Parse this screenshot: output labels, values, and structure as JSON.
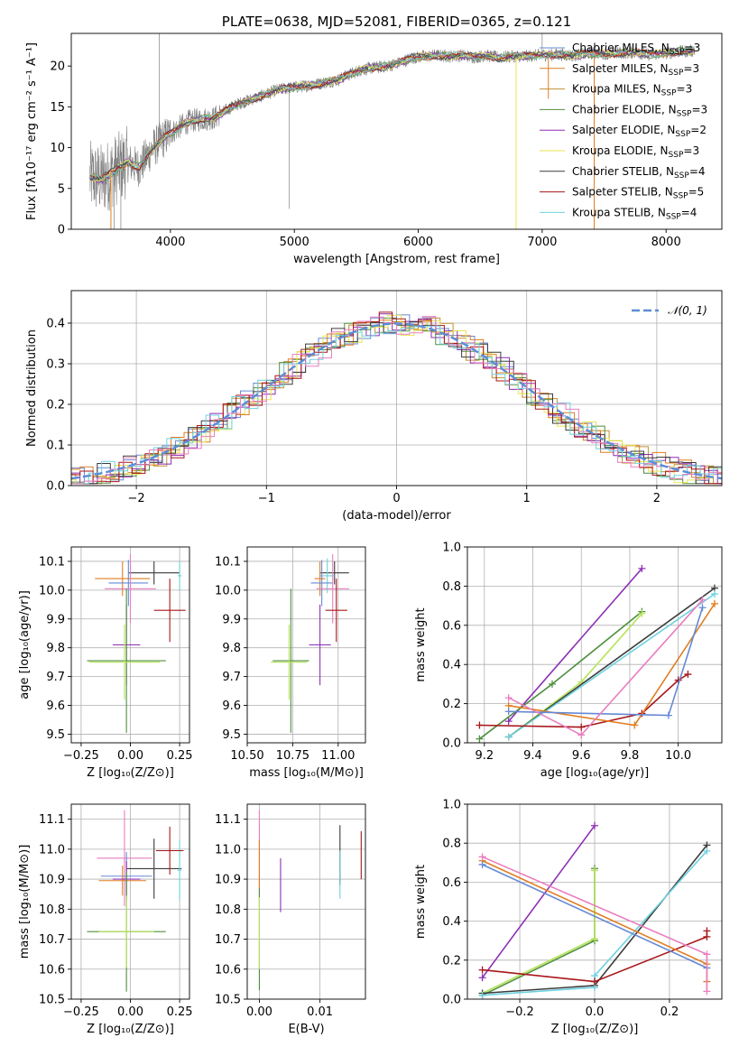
{
  "colors": {
    "chabrier_miles": "#6689d6",
    "salpeter_miles": "#e07e22",
    "kroupa_miles": "#c1912f",
    "chabrier_elodie": "#4e8f3f",
    "salpeter_elodie": "#8e2fb4",
    "kroupa_elodie": "#e6e650",
    "chabrier_stelib": "#3c3c3c",
    "salpeter_stelib": "#a8161a",
    "kroupa_stelib": "#6fd1e0",
    "data": "#7f7f7f",
    "pink": "#e87ec0",
    "lightgreen": "#b7e35a",
    "normal": "#5b8dd6"
  },
  "chart_data": [
    {
      "id": "spectrum",
      "type": "line",
      "title": "PLATE=0638, MJD=52081, FIBERID=0365, z=0.121",
      "xlabel": "wavelength [Angstrom, rest frame]",
      "ylabel": "Flux [fλ10⁻¹⁷ erg cm⁻² s⁻¹ A⁻¹]",
      "xlim": [
        3200,
        8450
      ],
      "ylim": [
        0,
        24
      ],
      "xticks": [
        4000,
        5000,
        6000,
        7000,
        8000
      ],
      "yticks": [
        0,
        5,
        10,
        15,
        20
      ],
      "grid": false,
      "legend_position": "right",
      "legend": [
        {
          "label": "Chabrier MILES, N_SSP=3",
          "color_key": "chabrier_miles"
        },
        {
          "label": "Salpeter MILES, N_SSP=3",
          "color_key": "salpeter_miles"
        },
        {
          "label": "Kroupa MILES, N_SSP=3",
          "color_key": "kroupa_miles"
        },
        {
          "label": "Chabrier ELODIE, N_SSP=3",
          "color_key": "chabrier_elodie"
        },
        {
          "label": "Salpeter ELODIE, N_SSP=2",
          "color_key": "salpeter_elodie"
        },
        {
          "label": "Kroupa ELODIE, N_SSP=3",
          "color_key": "kroupa_elodie"
        },
        {
          "label": "Chabrier STELIB, N_SSP=4",
          "color_key": "chabrier_stelib"
        },
        {
          "label": "Salpeter STELIB, N_SSP=5",
          "color_key": "salpeter_stelib"
        },
        {
          "label": "Kroupa STELIB, N_SSP=4",
          "color_key": "kroupa_stelib"
        }
      ],
      "continuum": [
        [
          3350,
          6.4
        ],
        [
          3450,
          6.1
        ],
        [
          3550,
          7.2
        ],
        [
          3650,
          8.2
        ],
        [
          3750,
          7.6
        ],
        [
          3850,
          9.8
        ],
        [
          3950,
          11.2
        ],
        [
          4050,
          12.3
        ],
        [
          4150,
          13.2
        ],
        [
          4250,
          13.5
        ],
        [
          4350,
          13.6
        ],
        [
          4450,
          14.6
        ],
        [
          4550,
          15.4
        ],
        [
          4650,
          15.9
        ],
        [
          4750,
          16.4
        ],
        [
          4850,
          17.0
        ],
        [
          4950,
          17.3
        ],
        [
          5050,
          17.5
        ],
        [
          5150,
          17.7
        ],
        [
          5250,
          18.0
        ],
        [
          5350,
          18.3
        ],
        [
          5450,
          19.0
        ],
        [
          5550,
          19.6
        ],
        [
          5650,
          19.8
        ],
        [
          5750,
          20.0
        ],
        [
          5850,
          20.4
        ],
        [
          5950,
          21.0
        ],
        [
          6050,
          21.2
        ],
        [
          6150,
          21.3
        ],
        [
          6250,
          21.2
        ],
        [
          6350,
          21.3
        ],
        [
          6450,
          21.1
        ],
        [
          6550,
          21.3
        ],
        [
          6650,
          21.0
        ],
        [
          6750,
          21.2
        ],
        [
          6850,
          21.2
        ],
        [
          6950,
          21.3
        ],
        [
          7050,
          21.4
        ],
        [
          7150,
          21.4
        ],
        [
          7250,
          21.3
        ],
        [
          7350,
          21.5
        ],
        [
          7450,
          21.6
        ],
        [
          7550,
          21.5
        ],
        [
          7650,
          21.6
        ],
        [
          7750,
          21.7
        ],
        [
          7850,
          21.4
        ],
        [
          7950,
          21.5
        ],
        [
          8050,
          21.7
        ],
        [
          8150,
          21.8
        ],
        [
          8230,
          21.9
        ]
      ]
    },
    {
      "id": "residuals",
      "type": "histogram",
      "xlabel": "(data-model)/error",
      "ylabel": "Normed distribution",
      "xlim": [
        -2.5,
        2.5
      ],
      "ylim": [
        0,
        0.48
      ],
      "xticks": [
        -2,
        -1,
        0,
        1,
        2
      ],
      "yticks": [
        0.0,
        0.1,
        0.2,
        0.3,
        0.4
      ],
      "grid": true,
      "legend_position": "top-right",
      "legend": [
        {
          "label": "𝒩(0, 1)",
          "color_key": "normal"
        }
      ],
      "curve": {
        "name": "𝒩(0, 1)",
        "mean": 0,
        "sigma": 1
      },
      "bin_width": 0.1
    },
    {
      "id": "age_vs_Z",
      "type": "errorbar",
      "xlabel": "Z [log₁₀(Z/Z⊙)]",
      "ylabel": "age  [log₁₀(age/yr)]",
      "xlim": [
        -0.3,
        0.3
      ],
      "ylim": [
        9.47,
        10.15
      ],
      "xticks": [
        -0.25,
        0.0,
        0.25
      ],
      "xtick_labels": [
        "−0.25",
        "0.00",
        "0.25"
      ],
      "yticks": [
        9.5,
        9.6,
        9.7,
        9.8,
        9.9,
        10.0,
        10.1
      ],
      "grid": true,
      "points": [
        {
          "color_key": "chabrier_stelib",
          "x": 0.12,
          "xerr": 0.13,
          "y": 10.06,
          "yerr": 0.04
        },
        {
          "color_key": "kroupa_stelib",
          "x": 0.25,
          "xerr": 0.01,
          "y": 10.05,
          "yerr": 0.05
        },
        {
          "color_key": "salpeter_miles",
          "x": -0.04,
          "xerr": 0.14,
          "y": 10.04,
          "yerr": 0.06
        },
        {
          "color_key": "chabrier_miles",
          "x": -0.01,
          "xerr": 0.1,
          "y": 10.025,
          "yerr": 0.08
        },
        {
          "color_key": "pink",
          "x": 0.0,
          "xerr": 0.13,
          "y": 10.005,
          "yerr": 0.12
        },
        {
          "color_key": "salpeter_stelib",
          "x": 0.2,
          "xerr": 0.08,
          "y": 9.93,
          "yerr": 0.11
        },
        {
          "color_key": "salpeter_elodie",
          "x": -0.02,
          "xerr": 0.07,
          "y": 9.81,
          "yerr": 0.14
        },
        {
          "color_key": "chabrier_elodie",
          "x": -0.02,
          "xerr": 0.2,
          "y": 9.755,
          "yerr": 0.25
        },
        {
          "color_key": "lightgreen",
          "x": -0.03,
          "xerr": 0.18,
          "y": 9.75,
          "yerr": 0.13
        }
      ]
    },
    {
      "id": "age_vs_mass",
      "type": "errorbar",
      "xlabel": "mass [log₁₀(M/M⊙)]",
      "ylabel": "",
      "xlim": [
        10.5,
        11.15
      ],
      "ylim": [
        9.47,
        10.15
      ],
      "xticks": [
        10.5,
        10.75,
        11.0
      ],
      "xtick_labels": [
        "10.50",
        "10.75",
        "11.00"
      ],
      "yticks": [
        9.5,
        9.6,
        9.7,
        9.8,
        9.9,
        10.0,
        10.1
      ],
      "grid": true,
      "points": [
        {
          "color_key": "chabrier_stelib",
          "x": 10.98,
          "xerr": 0.08,
          "y": 10.06,
          "yerr": 0.04
        },
        {
          "color_key": "kroupa_stelib",
          "x": 10.94,
          "xerr": 0.04,
          "y": 10.05,
          "yerr": 0.06
        },
        {
          "color_key": "salpeter_miles",
          "x": 10.9,
          "xerr": 0.03,
          "y": 10.04,
          "yerr": 0.06
        },
        {
          "color_key": "chabrier_miles",
          "x": 10.91,
          "xerr": 0.06,
          "y": 10.025,
          "yerr": 0.08
        },
        {
          "color_key": "pink",
          "x": 10.97,
          "xerr": 0.09,
          "y": 10.005,
          "yerr": 0.12
        },
        {
          "color_key": "salpeter_stelib",
          "x": 10.99,
          "xerr": 0.06,
          "y": 9.93,
          "yerr": 0.11
        },
        {
          "color_key": "salpeter_elodie",
          "x": 10.9,
          "xerr": 0.06,
          "y": 9.81,
          "yerr": 0.14
        },
        {
          "color_key": "chabrier_elodie",
          "x": 10.74,
          "xerr": 0.1,
          "y": 9.755,
          "yerr": 0.25
        },
        {
          "color_key": "lightgreen",
          "x": 10.73,
          "xerr": 0.1,
          "y": 9.75,
          "yerr": 0.13
        }
      ]
    },
    {
      "id": "weights_vs_age",
      "type": "line",
      "xlabel": "age  [log₁₀(age/yr)]",
      "ylabel": "mass weight",
      "xlim": [
        9.13,
        10.18
      ],
      "ylim": [
        0,
        1.0
      ],
      "xticks": [
        9.2,
        9.4,
        9.6,
        9.8,
        10.0
      ],
      "yticks": [
        0.0,
        0.2,
        0.4,
        0.6,
        0.8,
        1.0
      ],
      "grid": true,
      "series": [
        {
          "color_key": "salpeter_elodie",
          "x": [
            9.3,
            9.85
          ],
          "y": [
            0.11,
            0.89
          ]
        },
        {
          "color_key": "chabrier_elodie",
          "x": [
            9.18,
            9.48,
            9.85
          ],
          "y": [
            0.02,
            0.3,
            0.67
          ]
        },
        {
          "color_key": "lightgreen",
          "x": [
            9.3,
            9.6,
            9.85
          ],
          "y": [
            0.03,
            0.31,
            0.66
          ]
        },
        {
          "color_key": "chabrier_stelib",
          "x": [
            9.3,
            10.15
          ],
          "y": [
            0.03,
            0.79
          ]
        },
        {
          "color_key": "kroupa_stelib",
          "x": [
            9.3,
            10.15
          ],
          "y": [
            0.03,
            0.76
          ]
        },
        {
          "color_key": "salpeter_stelib",
          "x": [
            9.18,
            9.6,
            9.85,
            10.0,
            10.04
          ],
          "y": [
            0.09,
            0.08,
            0.15,
            0.32,
            0.35
          ]
        },
        {
          "color_key": "salpeter_miles",
          "x": [
            9.3,
            9.82,
            10.15
          ],
          "y": [
            0.19,
            0.09,
            0.71
          ]
        },
        {
          "color_key": "chabrier_miles",
          "x": [
            9.3,
            9.96,
            10.1
          ],
          "y": [
            0.16,
            0.14,
            0.69
          ]
        },
        {
          "color_key": "pink",
          "x": [
            9.3,
            9.6,
            10.1
          ],
          "y": [
            0.23,
            0.04,
            0.73
          ]
        }
      ]
    },
    {
      "id": "mass_vs_Z",
      "type": "errorbar",
      "xlabel": "Z [log₁₀(Z/Z⊙)]",
      "ylabel": "mass [log₁₀(M/M⊙)]",
      "xlim": [
        -0.3,
        0.3
      ],
      "ylim": [
        10.5,
        11.15
      ],
      "xticks": [
        -0.25,
        0.0,
        0.25
      ],
      "xtick_labels": [
        "−0.25",
        "0.00",
        "0.25"
      ],
      "yticks": [
        10.5,
        10.6,
        10.7,
        10.8,
        10.9,
        11.0,
        11.1
      ],
      "grid": true,
      "points": [
        {
          "color_key": "pink",
          "x": -0.03,
          "xerr": 0.14,
          "y": 10.97,
          "yerr": 0.16
        },
        {
          "color_key": "chabrier_stelib",
          "x": 0.12,
          "xerr": 0.14,
          "y": 10.935,
          "yerr": 0.1
        },
        {
          "color_key": "kroupa_stelib",
          "x": 0.25,
          "xerr": 0.01,
          "y": 10.93,
          "yerr": 0.1
        },
        {
          "color_key": "salpeter_stelib",
          "x": 0.2,
          "xerr": 0.07,
          "y": 10.995,
          "yerr": 0.08
        },
        {
          "color_key": "chabrier_miles",
          "x": -0.02,
          "xerr": 0.13,
          "y": 10.91,
          "yerr": 0.08
        },
        {
          "color_key": "salpeter_miles",
          "x": -0.04,
          "xerr": 0.12,
          "y": 10.895,
          "yerr": 0.05
        },
        {
          "color_key": "salpeter_elodie",
          "x": -0.02,
          "xerr": 0.07,
          "y": 10.9,
          "yerr": 0.06
        },
        {
          "color_key": "chabrier_elodie",
          "x": -0.02,
          "xerr": 0.2,
          "y": 10.725,
          "yerr": 0.2
        },
        {
          "color_key": "lightgreen",
          "x": -0.02,
          "xerr": 0.14,
          "y": 10.725,
          "yerr": 0.12
        }
      ]
    },
    {
      "id": "mass_vs_EBV",
      "type": "errorbar",
      "xlabel": "E(B-V)",
      "ylabel": "",
      "xlim": [
        -0.002,
        0.0175
      ],
      "ylim": [
        10.5,
        11.15
      ],
      "xticks": [
        0.0,
        0.01
      ],
      "xtick_labels": [
        "0.00",
        "0.01"
      ],
      "yticks": [
        10.5,
        10.6,
        10.7,
        10.8,
        10.9,
        11.0,
        11.1
      ],
      "grid": true,
      "points": [
        {
          "color_key": "pink",
          "x": 0.0,
          "xerr": 0,
          "y": 10.97,
          "yerr": 0.16
        },
        {
          "color_key": "salpeter_miles",
          "x": 0.0,
          "xerr": 0,
          "y": 10.95,
          "yerr": 0.08
        },
        {
          "color_key": "chabrier_elodie",
          "x": 0.0,
          "xerr": 0,
          "y": 10.7,
          "yerr": 0.17
        },
        {
          "color_key": "lightgreen",
          "x": 0.0,
          "xerr": 0,
          "y": 10.72,
          "yerr": 0.12
        },
        {
          "color_key": "salpeter_elodie",
          "x": 0.0035,
          "xerr": 0,
          "y": 10.88,
          "yerr": 0.09
        },
        {
          "color_key": "chabrier_stelib",
          "x": 0.0133,
          "xerr": 0,
          "y": 10.98,
          "yerr": 0.1
        },
        {
          "color_key": "kroupa_stelib",
          "x": 0.0133,
          "xerr": 0,
          "y": 10.915,
          "yerr": 0.08
        },
        {
          "color_key": "salpeter_stelib",
          "x": 0.0168,
          "xerr": 0,
          "y": 10.98,
          "yerr": 0.08
        }
      ]
    },
    {
      "id": "weights_vs_Z",
      "type": "line",
      "xlabel": "Z [log₁₀(Z/Z⊙)]",
      "ylabel": "mass weight",
      "xlim": [
        -0.34,
        0.34
      ],
      "ylim": [
        0,
        1.0
      ],
      "xticks": [
        -0.2,
        0.0,
        0.2
      ],
      "xtick_labels": [
        "−0.2",
        "0.0",
        "0.2"
      ],
      "yticks": [
        0.0,
        0.2,
        0.4,
        0.6,
        0.8,
        1.0
      ],
      "grid": true,
      "series": [
        {
          "color_key": "salpeter_elodie",
          "x": [
            -0.3,
            0.0
          ],
          "y": [
            0.11,
            0.89
          ]
        },
        {
          "color_key": "chabrier_elodie",
          "x": [
            -0.3,
            0.0,
            0.0
          ],
          "y": [
            0.02,
            0.3,
            0.67
          ]
        },
        {
          "color_key": "lightgreen",
          "x": [
            -0.3,
            0.0,
            0.0
          ],
          "y": [
            0.03,
            0.31,
            0.66
          ]
        },
        {
          "color_key": "chabrier_stelib",
          "x": [
            -0.3,
            0.0,
            0.3
          ],
          "y": [
            0.03,
            0.07,
            0.79
          ]
        },
        {
          "color_key": "kroupa_stelib",
          "x": [
            -0.3,
            0.0,
            0.0,
            0.3
          ],
          "y": [
            0.02,
            0.06,
            0.12,
            0.76
          ]
        },
        {
          "color_key": "salpeter_stelib",
          "x": [
            -0.3,
            0.0,
            0.3,
            0.3
          ],
          "y": [
            0.15,
            0.09,
            0.32,
            0.35
          ]
        },
        {
          "color_key": "salpeter_miles",
          "x": [
            -0.3,
            0.3,
            0.3
          ],
          "y": [
            0.71,
            0.18,
            0.09
          ]
        },
        {
          "color_key": "chabrier_miles",
          "x": [
            -0.3,
            0.3
          ],
          "y": [
            0.69,
            0.16
          ]
        },
        {
          "color_key": "pink",
          "x": [
            -0.3,
            0.3,
            0.3
          ],
          "y": [
            0.73,
            0.23,
            0.04
          ]
        }
      ]
    }
  ]
}
